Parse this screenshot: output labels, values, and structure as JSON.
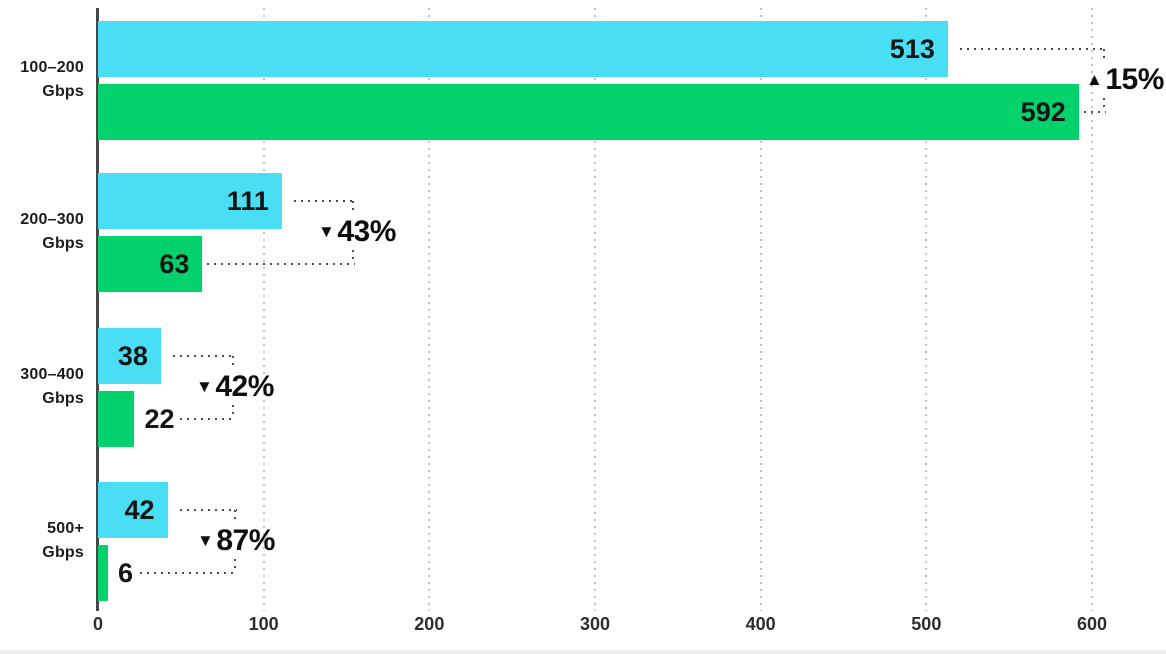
{
  "chart_data": {
    "type": "bar",
    "orientation": "horizontal",
    "title": "",
    "categories": [
      {
        "line1": "100–200",
        "line2": "Gbps"
      },
      {
        "line1": "200–300",
        "line2": "Gbps"
      },
      {
        "line1": "300–400",
        "line2": "Gbps"
      },
      {
        "line1": "500+",
        "line2": "Gbps"
      }
    ],
    "series": [
      {
        "name": "series-1",
        "color": "#4ADEF5",
        "values": [
          513,
          111,
          38,
          42
        ]
      },
      {
        "name": "series-2",
        "color": "#03D16C",
        "values": [
          592,
          63,
          22,
          6
        ]
      }
    ],
    "annotations": [
      {
        "direction": "up",
        "icon": "triangle-up-icon",
        "label": "15%"
      },
      {
        "direction": "down",
        "icon": "triangle-down-icon",
        "label": "43%"
      },
      {
        "direction": "down",
        "icon": "triangle-down-icon",
        "label": "42%"
      },
      {
        "direction": "down",
        "icon": "triangle-down-icon",
        "label": "87%"
      }
    ],
    "x_axis": {
      "ticks": [
        0,
        100,
        200,
        300,
        400,
        500,
        600
      ],
      "min": 0,
      "max": 600,
      "gridlines": true
    },
    "legend": "none",
    "colors": {
      "grid": "#bdc4c8",
      "axis": "#474747",
      "annotation_line": "#4b4b4b",
      "text": "#1c1c1c"
    }
  }
}
